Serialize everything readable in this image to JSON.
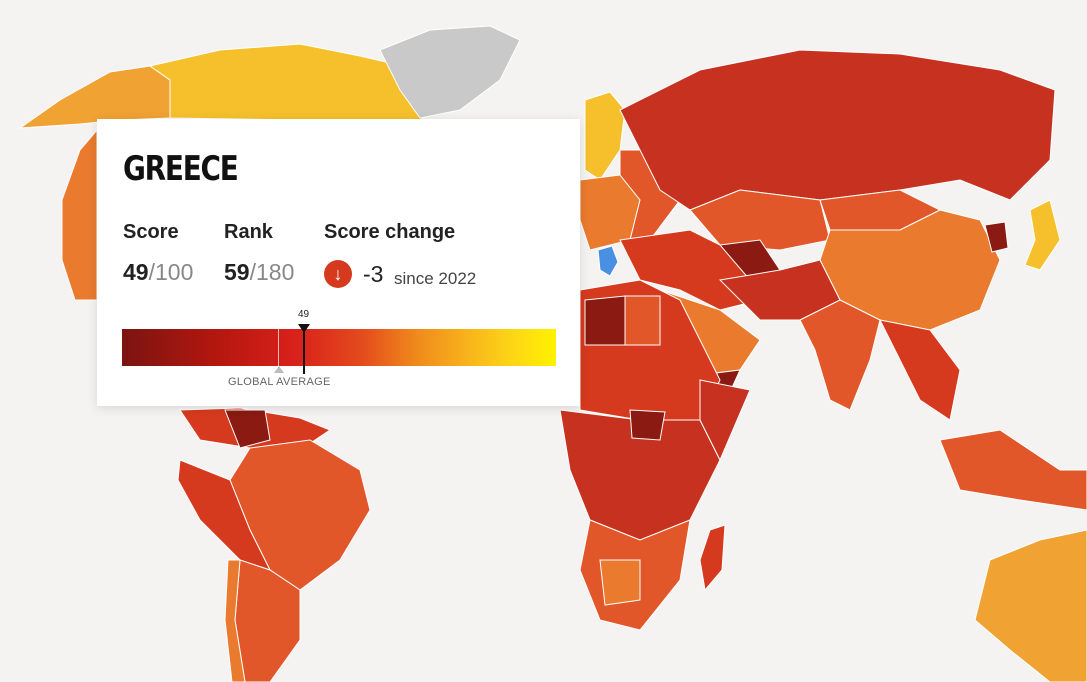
{
  "card": {
    "country": "GREECE",
    "score_label": "Score",
    "score_value": "49",
    "score_denominator": "/100",
    "rank_label": "Rank",
    "rank_value": "59",
    "rank_denominator": "/180",
    "change_label": "Score change",
    "change_icon": "arrow-down-icon",
    "change_value": "-3",
    "change_since": "since 2022",
    "scale": {
      "marker_label": "49",
      "marker_score": 49,
      "average_label": "GLOBAL AVERAGE",
      "average_score": 43,
      "min": 0,
      "max": 100
    }
  },
  "colors": {
    "ocean": "#f4f3f2",
    "very_low": "#7b1410",
    "low": "#b8271a",
    "mid_low": "#d63a1e",
    "mid": "#e2572a",
    "mid_high": "#ea7a2e",
    "high": "#f0a233",
    "very_high": "#f5c02c",
    "no_data": "#c9c9c9",
    "selected": "#4a90e2",
    "change_down": "#d63a1e"
  }
}
